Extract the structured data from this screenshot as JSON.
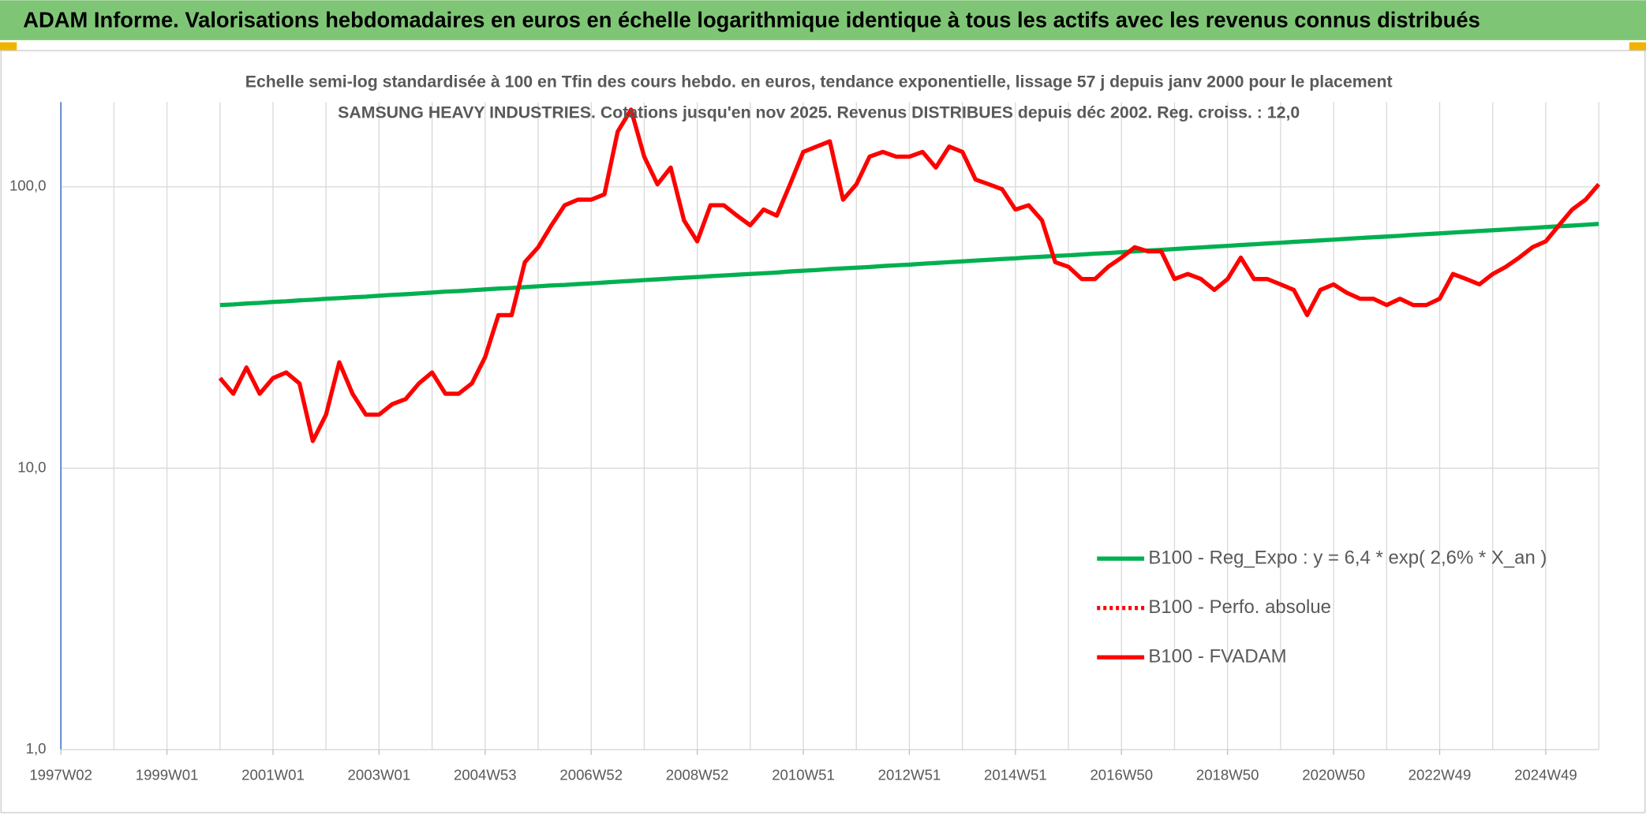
{
  "header": {
    "title": "ADAM Informe. Valorisations hebdomadaires en euros en échelle logarithmique identique à tous les actifs avec les revenus connus distribués"
  },
  "chart_data": {
    "type": "line",
    "title": "Echelle semi-log standardisée à 100 en Tfin des cours hebdo. en euros, tendance exponentielle, lissage 57 j depuis janv 2000 pour le placement SAMSUNG HEAVY INDUSTRIES. Cotations jusqu'en nov 2025. Revenus DISTRIBUES depuis déc 2002. Reg. croiss. : 12,0",
    "log_scale": true,
    "grid": true,
    "legend": "lower right",
    "ylim": [
      1,
      200
    ],
    "yticks": [
      {
        "value": 1,
        "label": "1,0"
      },
      {
        "value": 10,
        "label": "10,0"
      },
      {
        "value": 100,
        "label": "100,0"
      }
    ],
    "categories": [
      "1997W02",
      null,
      null,
      null,
      null,
      null,
      null,
      null,
      "1999W01",
      null,
      null,
      null,
      null,
      null,
      null,
      null,
      "2001W01",
      null,
      null,
      null,
      null,
      null,
      null,
      null,
      "2003W01",
      null,
      null,
      null,
      null,
      null,
      null,
      null,
      "2004W53",
      null,
      null,
      null,
      null,
      null,
      null,
      null,
      "2006W52",
      null,
      null,
      null,
      null,
      null,
      null,
      null,
      "2008W52",
      null,
      null,
      null,
      null,
      null,
      null,
      null,
      "2010W51",
      null,
      null,
      null,
      null,
      null,
      null,
      null,
      "2012W51",
      null,
      null,
      null,
      null,
      null,
      null,
      null,
      "2014W51",
      null,
      null,
      null,
      null,
      null,
      null,
      null,
      "2016W50",
      null,
      null,
      null,
      null,
      null,
      null,
      null,
      "2018W50",
      null,
      null,
      null,
      null,
      null,
      null,
      null,
      "2020W50",
      null,
      null,
      null,
      null,
      null,
      null,
      null,
      "2022W49",
      null,
      null,
      null,
      null,
      null,
      null,
      null,
      "2024W49",
      null,
      null,
      null,
      null
    ],
    "series": [
      {
        "name": "B100 - Reg_Expo : y = 6,4 * exp( 2,6% *  X_an )",
        "color": "#00b050",
        "style": "solid",
        "values": [
          null,
          null,
          null,
          null,
          null,
          null,
          null,
          null,
          null,
          null,
          null,
          null,
          38.0,
          38.2,
          38.5,
          38.7,
          39.0,
          39.2,
          39.5,
          39.7,
          40.0,
          40.2,
          40.5,
          40.7,
          41.0,
          41.3,
          41.5,
          41.8,
          42.1,
          42.4,
          42.6,
          42.9,
          43.2,
          43.5,
          43.7,
          44.0,
          44.3,
          44.6,
          44.8,
          45.1,
          45.4,
          45.7,
          46.0,
          46.3,
          46.6,
          46.9,
          47.2,
          47.5,
          47.8,
          48.1,
          48.4,
          48.7,
          49.0,
          49.3,
          49.6,
          50.0,
          50.3,
          50.6,
          51.0,
          51.3,
          51.6,
          51.9,
          52.3,
          52.6,
          52.9,
          53.3,
          53.6,
          54.0,
          54.3,
          54.7,
          55.0,
          55.4,
          55.7,
          56.1,
          56.4,
          56.8,
          57.1,
          57.5,
          57.9,
          58.2,
          58.6,
          59.0,
          59.4,
          59.7,
          60.1,
          60.5,
          60.9,
          61.3,
          61.7,
          62.1,
          62.5,
          62.9,
          63.3,
          63.7,
          64.1,
          64.5,
          64.9,
          65.3,
          65.8,
          66.2,
          66.6,
          67.0,
          67.5,
          67.9,
          68.3,
          68.8,
          69.2,
          69.7,
          70.1,
          70.5,
          71.0,
          71.4,
          71.9,
          72.4,
          72.8,
          73.3,
          73.8
        ]
      },
      {
        "name": "B100 - Perfo. absolue",
        "color": "#ff0000",
        "style": "dotted"
      },
      {
        "name": "B100 - FVADAM",
        "color": "#ff0000",
        "style": "solid",
        "values": [
          null,
          null,
          null,
          null,
          null,
          null,
          null,
          null,
          null,
          null,
          null,
          null,
          20.9,
          18.4,
          22.8,
          18.4,
          20.9,
          21.9,
          20,
          12.5,
          15.5,
          23.8,
          18.4,
          15.5,
          15.5,
          16.9,
          17.6,
          20,
          21.9,
          18.4,
          18.4,
          20,
          24.8,
          35,
          35,
          54,
          61,
          73,
          86,
          90,
          90,
          94,
          157,
          188,
          128,
          102,
          117,
          76,
          64,
          86,
          86,
          79,
          73,
          83,
          79,
          102,
          133,
          139,
          145,
          90,
          102,
          128,
          133,
          128,
          128,
          133,
          117,
          139,
          133,
          106,
          102,
          98,
          83,
          86,
          76,
          54,
          52,
          47,
          47,
          52,
          56,
          61,
          59,
          59,
          47,
          49,
          47,
          43,
          47,
          56,
          47,
          47,
          45,
          43,
          35,
          43,
          45,
          42,
          40,
          40,
          38,
          40,
          38,
          38,
          40,
          49,
          47,
          45,
          49,
          52,
          56,
          61,
          64,
          73,
          83,
          90,
          102
        ]
      }
    ]
  }
}
